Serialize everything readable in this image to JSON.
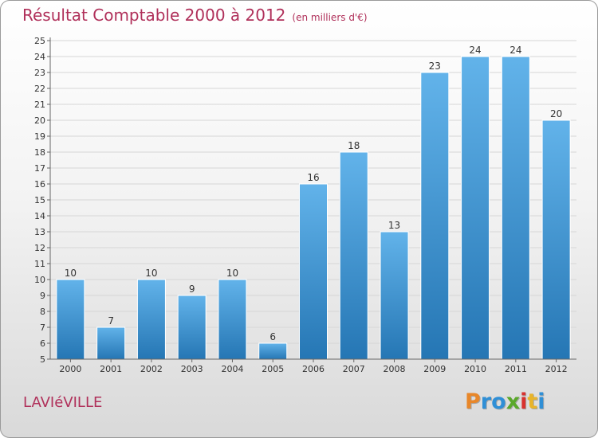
{
  "title": "Résultat Comptable 2000 à 2012",
  "unit": "(en milliers d'€)",
  "commune": "LAVIéVILLE",
  "logo": {
    "letters": [
      "P",
      "r",
      "o",
      "x",
      "i",
      "t",
      "i"
    ],
    "colors": [
      "#e8872a",
      "#2f8fd6",
      "#2f8fd6",
      "#5aa82a",
      "#d8312f",
      "#e8b42a",
      "#2f8fd6"
    ]
  },
  "colors": {
    "bar_top": "#62b3ea",
    "bar_bottom": "#2576b4",
    "grid": "#d6d6d6",
    "axis": "#666666",
    "title": "#b0305a"
  },
  "chart_data": {
    "type": "bar",
    "title": "Résultat Comptable 2000 à 2012",
    "ylabel": "en milliers d'€",
    "xlabel": "",
    "categories": [
      "2000",
      "2001",
      "2002",
      "2003",
      "2004",
      "2005",
      "2006",
      "2007",
      "2008",
      "2009",
      "2010",
      "2011",
      "2012"
    ],
    "values": [
      10,
      7,
      10,
      9,
      10,
      6,
      16,
      18,
      13,
      23,
      24,
      24,
      20
    ],
    "ylim": [
      5,
      25
    ],
    "ytick_step": 1,
    "grid": true
  }
}
